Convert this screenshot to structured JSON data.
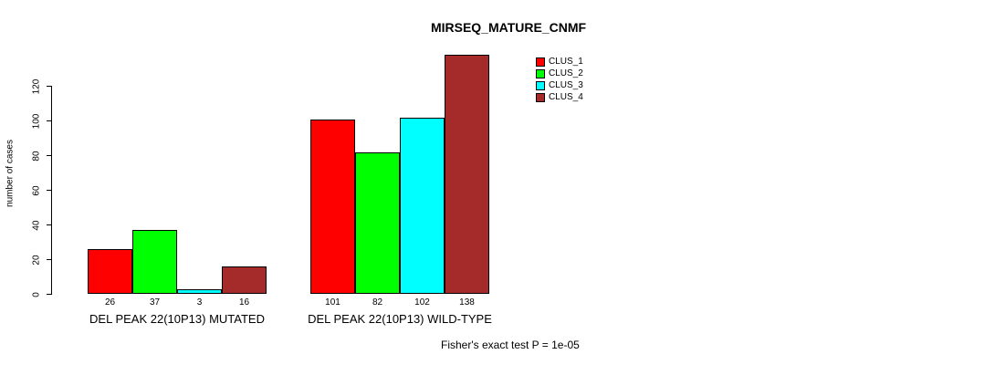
{
  "chart_data": {
    "type": "bar",
    "title": "MIRSEQ_MATURE_CNMF",
    "ylabel": "number of cases",
    "xlabel": "",
    "yticks": [
      0,
      20,
      40,
      60,
      80,
      100,
      120
    ],
    "ylim": [
      0,
      140
    ],
    "grid": false,
    "legend_position": "top-right-inside",
    "series": [
      {
        "name": "CLUS_1",
        "color": "#ff0000",
        "values": [
          26,
          101
        ]
      },
      {
        "name": "CLUS_2",
        "color": "#00ff00",
        "values": [
          37,
          82
        ]
      },
      {
        "name": "CLUS_3",
        "color": "#00ffff",
        "values": [
          3,
          102
        ]
      },
      {
        "name": "CLUS_4",
        "color": "#a52a2a",
        "values": [
          16,
          138
        ]
      }
    ],
    "groups": [
      {
        "label": "DEL PEAK 22(10P13) MUTATED",
        "values": [
          26,
          37,
          3,
          16
        ]
      },
      {
        "label": "DEL PEAK 22(10P13) WILD-TYPE",
        "values": [
          101,
          82,
          102,
          138
        ]
      }
    ],
    "bar_value_labels_shown": true,
    "bar_border_color": "#000000",
    "annotation": "Fisher's exact test P = 1e-05",
    "text_color": "#000000",
    "background_color": "#ffffff"
  }
}
